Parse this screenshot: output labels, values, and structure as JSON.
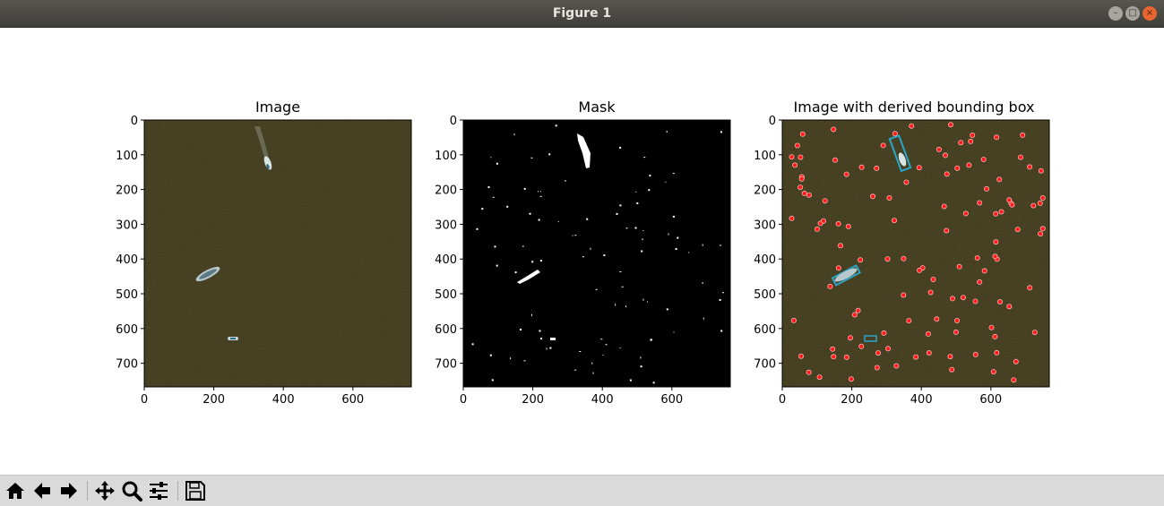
{
  "window": {
    "title": "Figure 1"
  },
  "window_controls": {
    "minimize": "–",
    "maximize": "□",
    "close": "×"
  },
  "panels": [
    {
      "title": "Image"
    },
    {
      "title": "Mask"
    },
    {
      "title": "Image with derived bounding box"
    }
  ],
  "axes": {
    "x_ticks": [
      "0",
      "200",
      "400",
      "600"
    ],
    "y_ticks": [
      "0",
      "100",
      "200",
      "300",
      "400",
      "500",
      "600",
      "700"
    ],
    "x_tick_values": [
      0,
      200,
      400,
      600
    ],
    "y_tick_values": [
      0,
      100,
      200,
      300,
      400,
      500,
      600,
      700
    ],
    "xlim": [
      0,
      768
    ],
    "ylim": [
      768,
      0
    ]
  },
  "colors": {
    "image_background": "#3a3418",
    "mask_background": "#000000",
    "mask_foreground": "#ffffff",
    "marker": "#ff1a1a",
    "bounding_box": "#2aa7c8"
  },
  "toolbar": {
    "buttons": [
      {
        "name": "home-button",
        "icon": "home-icon"
      },
      {
        "name": "back-button",
        "icon": "arrow-left-icon"
      },
      {
        "name": "forward-button",
        "icon": "arrow-right-icon"
      },
      {
        "name": "pan-button",
        "icon": "move-icon"
      },
      {
        "name": "zoom-button",
        "icon": "magnifier-icon"
      },
      {
        "name": "configure-subplots-button",
        "icon": "sliders-icon"
      },
      {
        "name": "save-button",
        "icon": "floppy-disk-icon"
      }
    ]
  }
}
